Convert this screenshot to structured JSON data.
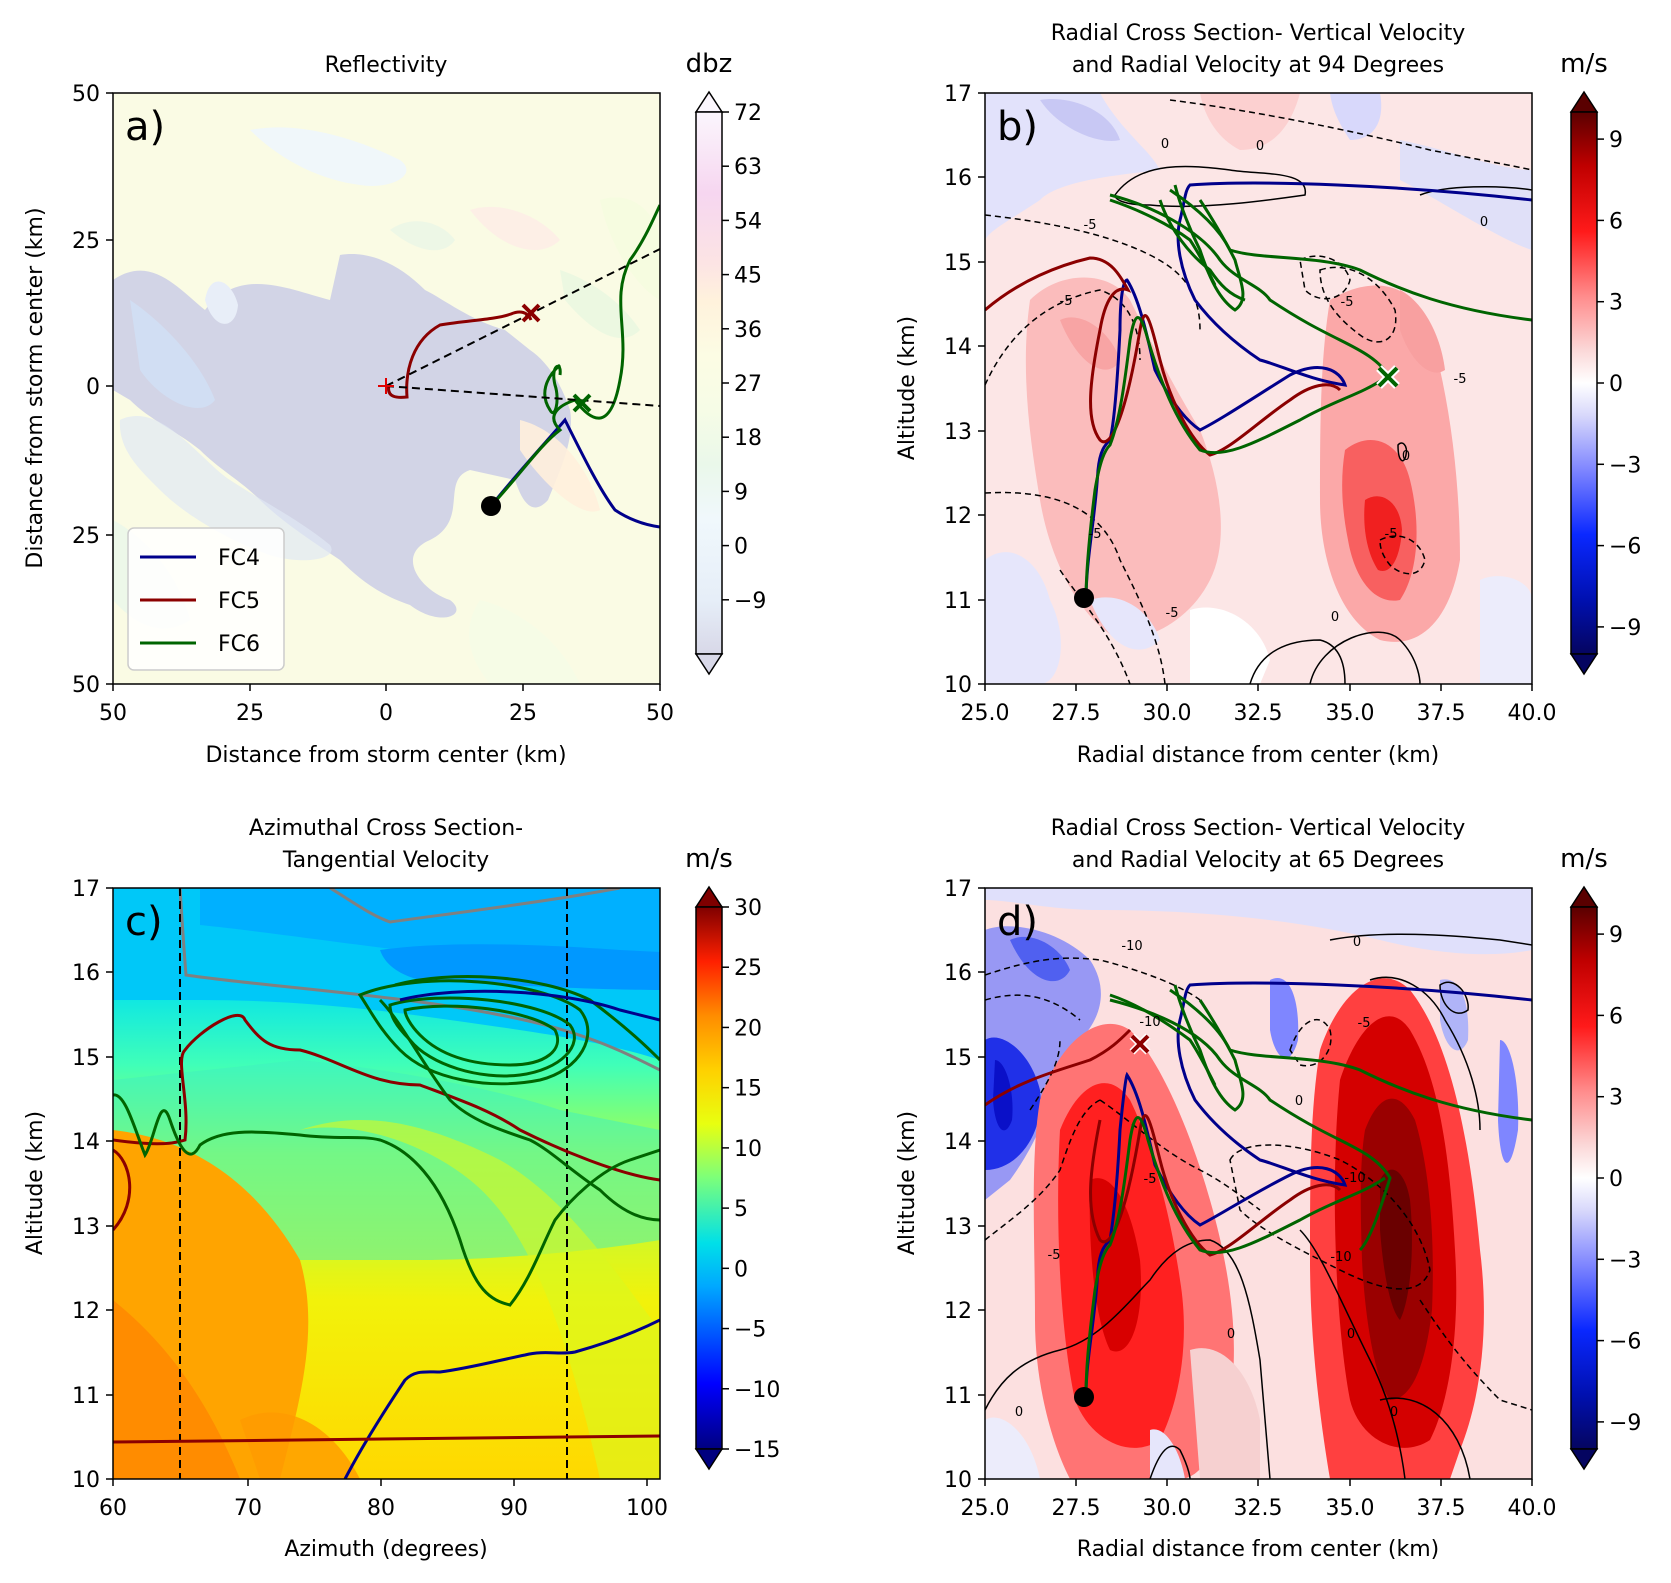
{
  "chart_data": [
    {
      "panel": "a)",
      "type": "contourf",
      "title": "Reflectivity",
      "xlabel": "Distance from storm center (km)",
      "ylabel": "Distance from storm center (km)",
      "xlim": [
        -50,
        50
      ],
      "ylim": [
        -50,
        50
      ],
      "x_ticks": [
        "50",
        "25",
        "0",
        "25",
        "50"
      ],
      "y_ticks": [
        "50",
        "25",
        "0",
        "25",
        "50"
      ],
      "colorbar": {
        "label": "dbz",
        "ticks": [
          "72",
          "63",
          "54",
          "45",
          "36",
          "27",
          "18",
          "9",
          "0",
          "−9"
        ],
        "range": [
          -18,
          72
        ],
        "colors": [
          "#d8d8e8",
          "#e6eef8",
          "#f0f8fc",
          "#eaf8ea",
          "#f6fce6",
          "#fcfce4",
          "#fff2dc",
          "#fce4e4",
          "#f6d6f0",
          "#fbf6fd"
        ]
      },
      "legend": {
        "placement": "lower-left",
        "entries": [
          {
            "name": "FC4",
            "color": "#00008b"
          },
          {
            "name": "FC5",
            "color": "#8b0000"
          },
          {
            "name": "FC6",
            "color": "#006400"
          }
        ]
      },
      "markers": [
        {
          "type": "start-dot",
          "x": 18.5,
          "y": -22
        },
        {
          "type": "x-mark",
          "series": "FC5",
          "x": 26,
          "y": 12.5
        },
        {
          "type": "x-mark",
          "series": "FC6",
          "x": 36,
          "y": -3
        },
        {
          "type": "plus",
          "x": 0,
          "y": 0
        }
      ],
      "reference_lines": [
        {
          "style": "dashed",
          "from": [
            0,
            0
          ],
          "to": [
            50,
            23
          ]
        },
        {
          "style": "dashed",
          "from": [
            0,
            0
          ],
          "to": [
            50,
            -3.5
          ]
        }
      ]
    },
    {
      "panel": "b)",
      "type": "contourf",
      "title": "Radial Cross Section- Vertical Velocity",
      "subtitle": "and Radial Velocity at 94 Degrees",
      "xlabel": "Radial distance from center (km)",
      "ylabel": "Altitude (km)",
      "xlim": [
        25,
        40
      ],
      "ylim": [
        10,
        17
      ],
      "x_ticks": [
        "25.0",
        "27.5",
        "30.0",
        "32.5",
        "35.0",
        "37.5",
        "40.0"
      ],
      "y_ticks": [
        "10",
        "11",
        "12",
        "13",
        "14",
        "15",
        "16",
        "17"
      ],
      "colorbar": {
        "label": "m/s",
        "ticks": [
          "9",
          "6",
          "3",
          "0",
          "−3",
          "−6",
          "−9"
        ],
        "range": [
          -10,
          10
        ]
      },
      "contour_labels": [
        "0",
        "0",
        "0",
        "0",
        "0",
        "-5",
        "-5",
        "-5",
        "-5",
        "-5",
        "-5",
        "-5"
      ],
      "markers": [
        {
          "type": "start-dot",
          "x": 27.6,
          "y": 11.0
        },
        {
          "type": "x-mark",
          "series": "FC6",
          "x": 36.0,
          "y": 13.6
        }
      ]
    },
    {
      "panel": "c)",
      "type": "contourf",
      "title": "Azimuthal Cross Section-",
      "subtitle": "Tangential Velocity",
      "xlabel": "Azimuth (degrees)",
      "ylabel": "Altitude (km)",
      "xlim": [
        60,
        101
      ],
      "ylim": [
        10,
        17
      ],
      "x_ticks": [
        "60",
        "70",
        "80",
        "90",
        "100"
      ],
      "y_ticks": [
        "10",
        "11",
        "12",
        "13",
        "14",
        "15",
        "16",
        "17"
      ],
      "colorbar": {
        "label": "m/s",
        "ticks": [
          "30",
          "25",
          "20",
          "15",
          "10",
          "5",
          "0",
          "−5",
          "−10",
          "−15"
        ],
        "range": [
          -15,
          30
        ]
      },
      "vertical_lines": [
        65,
        94
      ]
    },
    {
      "panel": "d)",
      "type": "contourf",
      "title": "Radial Cross Section- Vertical Velocity",
      "subtitle": "and Radial Velocity at 65 Degrees",
      "xlabel": "Radial distance from center (km)",
      "ylabel": "Altitude (km)",
      "xlim": [
        25,
        40
      ],
      "ylim": [
        10,
        17
      ],
      "x_ticks": [
        "25.0",
        "27.5",
        "30.0",
        "32.5",
        "35.0",
        "37.5",
        "40.0"
      ],
      "y_ticks": [
        "10",
        "11",
        "12",
        "13",
        "14",
        "15",
        "16",
        "17"
      ],
      "colorbar": {
        "label": "m/s",
        "ticks": [
          "9",
          "6",
          "3",
          "0",
          "−3",
          "−6",
          "−9"
        ],
        "range": [
          -10,
          10
        ]
      },
      "contour_labels": [
        "-10",
        "0",
        "-10",
        "-5",
        "0",
        "-5",
        "-10",
        "-10",
        "-5",
        "0",
        "0",
        "0",
        "0"
      ],
      "markers": [
        {
          "type": "start-dot",
          "x": 27.6,
          "y": 11.0
        },
        {
          "type": "x-mark",
          "series": "FC5",
          "x": 29.2,
          "y": 15.2
        }
      ]
    }
  ]
}
